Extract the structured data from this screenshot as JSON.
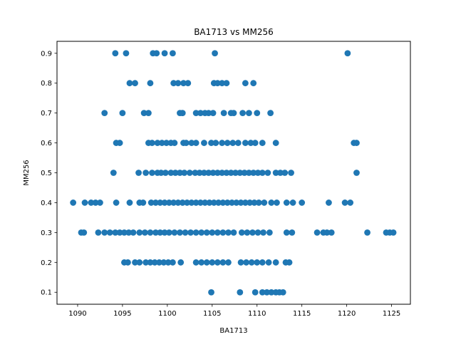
{
  "chart_data": {
    "type": "scatter",
    "title": "BA1713 vs MM256",
    "xlabel": "BA1713",
    "ylabel": "MM256",
    "xlim": [
      1087.7,
      1127.1
    ],
    "ylim": [
      0.06,
      0.94
    ],
    "xticks": [
      "1090",
      "1095",
      "1100",
      "1105",
      "1110",
      "1115",
      "1120",
      "1125"
    ],
    "yticks": [
      "0.1",
      "0.2",
      "0.3",
      "0.4",
      "0.5",
      "0.6",
      "0.7",
      "0.8",
      "0.9"
    ],
    "grid": false,
    "marker_color": "#1f77b4",
    "series": [
      {
        "points": [
          [
            1094.2,
            0.9
          ],
          [
            1095.4,
            0.9
          ],
          [
            1098.4,
            0.9
          ],
          [
            1098.8,
            0.9
          ],
          [
            1099.7,
            0.9
          ],
          [
            1100.6,
            0.9
          ],
          [
            1105.3,
            0.9
          ],
          [
            1120.1,
            0.9
          ],
          [
            1095.8,
            0.8
          ],
          [
            1096.4,
            0.8
          ],
          [
            1098.1,
            0.8
          ],
          [
            1100.7,
            0.8
          ],
          [
            1101.2,
            0.8
          ],
          [
            1101.8,
            0.8
          ],
          [
            1102.3,
            0.8
          ],
          [
            1105.2,
            0.8
          ],
          [
            1105.6,
            0.8
          ],
          [
            1106.1,
            0.8
          ],
          [
            1106.6,
            0.8
          ],
          [
            1108.7,
            0.8
          ],
          [
            1109.6,
            0.8
          ],
          [
            1093.0,
            0.7
          ],
          [
            1095.0,
            0.7
          ],
          [
            1097.4,
            0.7
          ],
          [
            1097.9,
            0.7
          ],
          [
            1101.4,
            0.7
          ],
          [
            1101.7,
            0.7
          ],
          [
            1103.2,
            0.7
          ],
          [
            1103.7,
            0.7
          ],
          [
            1104.2,
            0.7
          ],
          [
            1104.6,
            0.7
          ],
          [
            1105.1,
            0.7
          ],
          [
            1106.3,
            0.7
          ],
          [
            1107.1,
            0.7
          ],
          [
            1107.4,
            0.7
          ],
          [
            1108.4,
            0.7
          ],
          [
            1109.1,
            0.7
          ],
          [
            1110.0,
            0.7
          ],
          [
            1111.5,
            0.7
          ],
          [
            1094.3,
            0.6
          ],
          [
            1094.7,
            0.6
          ],
          [
            1097.9,
            0.6
          ],
          [
            1098.3,
            0.6
          ],
          [
            1098.9,
            0.6
          ],
          [
            1099.4,
            0.6
          ],
          [
            1099.9,
            0.6
          ],
          [
            1100.4,
            0.6
          ],
          [
            1100.8,
            0.6
          ],
          [
            1101.8,
            0.6
          ],
          [
            1102.1,
            0.6
          ],
          [
            1102.7,
            0.6
          ],
          [
            1103.2,
            0.6
          ],
          [
            1104.1,
            0.6
          ],
          [
            1104.9,
            0.6
          ],
          [
            1105.4,
            0.6
          ],
          [
            1106.1,
            0.6
          ],
          [
            1106.7,
            0.6
          ],
          [
            1107.3,
            0.6
          ],
          [
            1107.9,
            0.6
          ],
          [
            1108.7,
            0.6
          ],
          [
            1109.3,
            0.6
          ],
          [
            1109.8,
            0.6
          ],
          [
            1110.6,
            0.6
          ],
          [
            1112.1,
            0.6
          ],
          [
            1120.8,
            0.6
          ],
          [
            1121.1,
            0.6
          ],
          [
            1094.0,
            0.5
          ],
          [
            1096.8,
            0.5
          ],
          [
            1097.6,
            0.5
          ],
          [
            1098.3,
            0.5
          ],
          [
            1098.9,
            0.5
          ],
          [
            1099.3,
            0.5
          ],
          [
            1099.8,
            0.5
          ],
          [
            1100.4,
            0.5
          ],
          [
            1100.9,
            0.5
          ],
          [
            1101.4,
            0.5
          ],
          [
            1101.9,
            0.5
          ],
          [
            1102.5,
            0.5
          ],
          [
            1103.1,
            0.5
          ],
          [
            1103.6,
            0.5
          ],
          [
            1104.1,
            0.5
          ],
          [
            1104.6,
            0.5
          ],
          [
            1105.1,
            0.5
          ],
          [
            1105.6,
            0.5
          ],
          [
            1106.1,
            0.5
          ],
          [
            1106.6,
            0.5
          ],
          [
            1107.1,
            0.5
          ],
          [
            1107.6,
            0.5
          ],
          [
            1108.1,
            0.5
          ],
          [
            1108.6,
            0.5
          ],
          [
            1109.1,
            0.5
          ],
          [
            1109.6,
            0.5
          ],
          [
            1110.1,
            0.5
          ],
          [
            1110.6,
            0.5
          ],
          [
            1111.2,
            0.5
          ],
          [
            1112.1,
            0.5
          ],
          [
            1112.6,
            0.5
          ],
          [
            1113.1,
            0.5
          ],
          [
            1113.8,
            0.5
          ],
          [
            1121.1,
            0.5
          ],
          [
            1089.5,
            0.4
          ],
          [
            1090.8,
            0.4
          ],
          [
            1091.5,
            0.4
          ],
          [
            1092.0,
            0.4
          ],
          [
            1092.5,
            0.4
          ],
          [
            1094.3,
            0.4
          ],
          [
            1095.8,
            0.4
          ],
          [
            1096.9,
            0.4
          ],
          [
            1097.3,
            0.4
          ],
          [
            1098.2,
            0.4
          ],
          [
            1098.7,
            0.4
          ],
          [
            1099.2,
            0.4
          ],
          [
            1099.7,
            0.4
          ],
          [
            1100.2,
            0.4
          ],
          [
            1100.7,
            0.4
          ],
          [
            1101.2,
            0.4
          ],
          [
            1101.7,
            0.4
          ],
          [
            1102.2,
            0.4
          ],
          [
            1102.7,
            0.4
          ],
          [
            1103.2,
            0.4
          ],
          [
            1103.7,
            0.4
          ],
          [
            1104.2,
            0.4
          ],
          [
            1104.7,
            0.4
          ],
          [
            1105.2,
            0.4
          ],
          [
            1105.7,
            0.4
          ],
          [
            1106.2,
            0.4
          ],
          [
            1106.7,
            0.4
          ],
          [
            1107.2,
            0.4
          ],
          [
            1107.7,
            0.4
          ],
          [
            1108.2,
            0.4
          ],
          [
            1108.7,
            0.4
          ],
          [
            1109.2,
            0.4
          ],
          [
            1109.7,
            0.4
          ],
          [
            1110.2,
            0.4
          ],
          [
            1110.8,
            0.4
          ],
          [
            1111.6,
            0.4
          ],
          [
            1112.2,
            0.4
          ],
          [
            1113.3,
            0.4
          ],
          [
            1114.0,
            0.4
          ],
          [
            1115.0,
            0.4
          ],
          [
            1118.0,
            0.4
          ],
          [
            1119.8,
            0.4
          ],
          [
            1120.4,
            0.4
          ],
          [
            1090.4,
            0.3
          ],
          [
            1090.7,
            0.3
          ],
          [
            1092.3,
            0.3
          ],
          [
            1093.0,
            0.3
          ],
          [
            1093.6,
            0.3
          ],
          [
            1094.2,
            0.3
          ],
          [
            1094.7,
            0.3
          ],
          [
            1095.2,
            0.3
          ],
          [
            1095.7,
            0.3
          ],
          [
            1096.2,
            0.3
          ],
          [
            1096.9,
            0.3
          ],
          [
            1097.5,
            0.3
          ],
          [
            1098.1,
            0.3
          ],
          [
            1098.7,
            0.3
          ],
          [
            1099.2,
            0.3
          ],
          [
            1099.7,
            0.3
          ],
          [
            1100.2,
            0.3
          ],
          [
            1100.8,
            0.3
          ],
          [
            1101.4,
            0.3
          ],
          [
            1102.0,
            0.3
          ],
          [
            1102.6,
            0.3
          ],
          [
            1103.2,
            0.3
          ],
          [
            1103.8,
            0.3
          ],
          [
            1104.4,
            0.3
          ],
          [
            1105.0,
            0.3
          ],
          [
            1105.6,
            0.3
          ],
          [
            1106.2,
            0.3
          ],
          [
            1106.8,
            0.3
          ],
          [
            1107.4,
            0.3
          ],
          [
            1108.3,
            0.3
          ],
          [
            1108.9,
            0.3
          ],
          [
            1109.5,
            0.3
          ],
          [
            1110.1,
            0.3
          ],
          [
            1110.7,
            0.3
          ],
          [
            1111.4,
            0.3
          ],
          [
            1113.3,
            0.3
          ],
          [
            1113.9,
            0.3
          ],
          [
            1116.7,
            0.3
          ],
          [
            1117.4,
            0.3
          ],
          [
            1117.8,
            0.3
          ],
          [
            1118.3,
            0.3
          ],
          [
            1122.3,
            0.3
          ],
          [
            1124.4,
            0.3
          ],
          [
            1124.8,
            0.3
          ],
          [
            1125.2,
            0.3
          ],
          [
            1095.2,
            0.2
          ],
          [
            1095.6,
            0.2
          ],
          [
            1096.4,
            0.2
          ],
          [
            1096.9,
            0.2
          ],
          [
            1097.6,
            0.2
          ],
          [
            1098.1,
            0.2
          ],
          [
            1098.6,
            0.2
          ],
          [
            1099.1,
            0.2
          ],
          [
            1099.6,
            0.2
          ],
          [
            1100.1,
            0.2
          ],
          [
            1100.6,
            0.2
          ],
          [
            1101.5,
            0.2
          ],
          [
            1103.2,
            0.2
          ],
          [
            1103.8,
            0.2
          ],
          [
            1104.4,
            0.2
          ],
          [
            1105.0,
            0.2
          ],
          [
            1105.6,
            0.2
          ],
          [
            1106.2,
            0.2
          ],
          [
            1106.8,
            0.2
          ],
          [
            1108.2,
            0.2
          ],
          [
            1108.8,
            0.2
          ],
          [
            1109.4,
            0.2
          ],
          [
            1110.0,
            0.2
          ],
          [
            1110.6,
            0.2
          ],
          [
            1111.3,
            0.2
          ],
          [
            1112.1,
            0.2
          ],
          [
            1113.2,
            0.2
          ],
          [
            1113.6,
            0.2
          ],
          [
            1104.9,
            0.1
          ],
          [
            1108.1,
            0.1
          ],
          [
            1109.8,
            0.1
          ],
          [
            1110.6,
            0.1
          ],
          [
            1111.1,
            0.1
          ],
          [
            1111.6,
            0.1
          ],
          [
            1112.1,
            0.1
          ],
          [
            1112.5,
            0.1
          ],
          [
            1112.9,
            0.1
          ]
        ]
      }
    ]
  }
}
